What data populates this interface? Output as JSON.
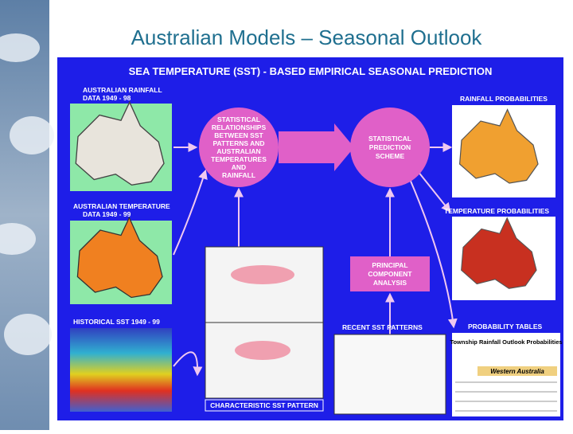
{
  "title": "Australian Models – Seasonal Outlook",
  "diagram": {
    "header": "SEA TEMPERATURE (SST) - BASED EMPIRICAL SEASONAL PREDICTION",
    "inputs": [
      {
        "lines": [
          "AUSTRALIAN RAINFALL",
          "DATA 1949 - 98"
        ]
      },
      {
        "lines": [
          "AUSTRALIAN TEMPERATURE",
          "DATA 1949 - 99"
        ]
      },
      {
        "lines": [
          "HISTORICAL SST 1949 - 99"
        ]
      }
    ],
    "nodes": [
      {
        "lines": [
          "STATISTICAL",
          "RELATIONSHIPS",
          "BETWEEN SST",
          "PATTERNS AND",
          "AUSTRALIAN",
          "TEMPERATURES",
          "AND",
          "RAINFALL"
        ]
      },
      {
        "lines": [
          "STATISTICAL",
          "PREDICTION",
          "SCHEME"
        ]
      },
      {
        "lines": [
          "PRINCIPAL",
          "COMPONENT",
          "ANALYSIS"
        ]
      }
    ],
    "sst_labels": [
      "RECENT SST PATTERNS",
      "CHARACTERISTIC SST PATTERN"
    ],
    "outputs": [
      "RAINFALL PROBABILITIES",
      "TEMPERATURE PROBABILITIES",
      "PROBABILITY TABLES"
    ],
    "table": {
      "title": "Township Rainfall Outlook Probabilities",
      "region": "Western Australia"
    }
  }
}
